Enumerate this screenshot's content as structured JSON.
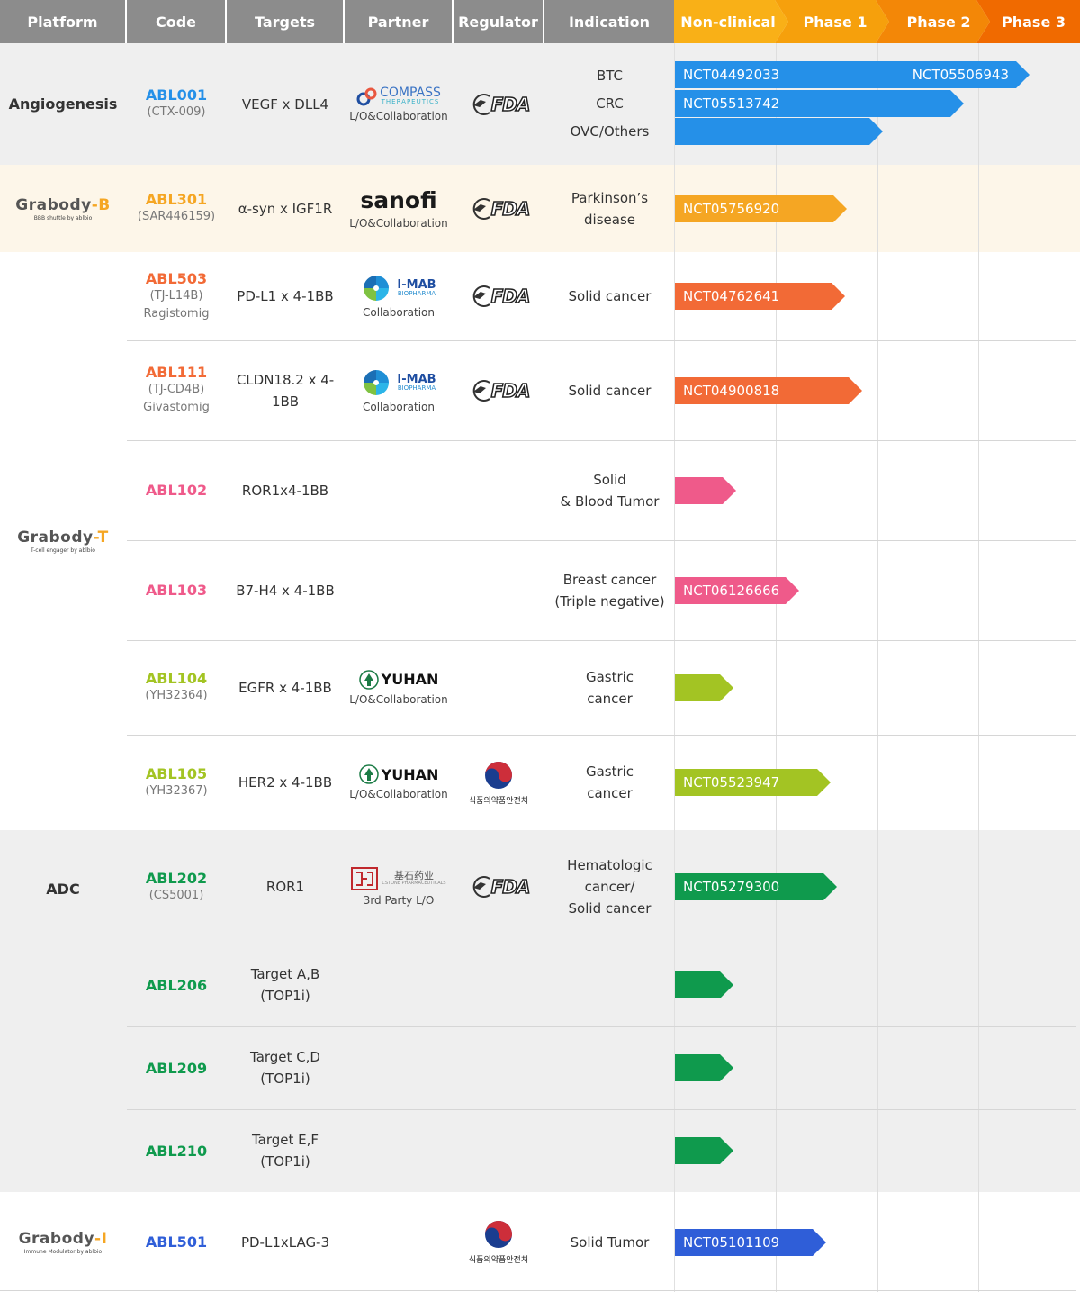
{
  "header": {
    "columns": [
      "Platform",
      "Code",
      "Targets",
      "Partner",
      "Regulator",
      "Indication"
    ],
    "phases": [
      "Non-clinical",
      "Phase 1",
      "Phase 2",
      "Phase 3"
    ],
    "phase_colors": [
      "#f9b017",
      "#f6a00c",
      "#f38707",
      "#f06a00"
    ]
  },
  "platforms": {
    "angiogenesis": "Angiogenesis",
    "grabody_b": {
      "main": "Grabody",
      "suffix": "-B",
      "tag": "BBB shuttle by ablbio"
    },
    "grabody_t": {
      "main": "Grabody",
      "suffix": "-T",
      "tag": "T-cell engager by ablbio"
    },
    "adc": "ADC",
    "grabody_i": {
      "main": "Grabody",
      "suffix": "-I",
      "tag": "Immune Modulator by ablbio"
    }
  },
  "logos": {
    "compass": {
      "name": "COMPASS",
      "sub": "THERAPEUTICS"
    },
    "sanofi": "sanofi",
    "imab": {
      "name": "I-MAB",
      "sub": "BIOPHARMA"
    },
    "yuhan": "YUHAN",
    "cstone": {
      "name": "基石药业",
      "sub": "CSTONE PHARMACEUTICALS"
    },
    "fda": "FDA",
    "mfds": "식품의약품안전처"
  },
  "rows": [
    {
      "code": "ABL001",
      "alias": "(CTX-009)",
      "alias2": "",
      "target": [
        "VEGF x DLL4"
      ],
      "partner": "compass",
      "partner_caption": "L/O&Collaboration",
      "regulator": "fda",
      "indication": [
        "BTC",
        "CRC",
        "OVC/Others"
      ],
      "color": "#2590e8"
    },
    {
      "code": "ABL301",
      "alias": "(SAR446159)",
      "alias2": "",
      "target": [
        "α-syn x IGF1R"
      ],
      "partner": "sanofi",
      "partner_caption": "L/O&Collaboration",
      "regulator": "fda",
      "indication": [
        "Parkinson’s",
        "disease"
      ],
      "color": "#f5a623"
    },
    {
      "code": "ABL503",
      "alias": "(TJ-L14B)",
      "alias2": "Ragistomig",
      "target": [
        "PD-L1 x 4-1BB"
      ],
      "partner": "imab",
      "partner_caption": "Collaboration",
      "regulator": "fda",
      "indication": [
        "Solid cancer"
      ],
      "color": "#f26a36"
    },
    {
      "code": "ABL111",
      "alias": "(TJ-CD4B)",
      "alias2": "Givastomig",
      "target": [
        "CLDN18.2 x 4-1BB"
      ],
      "partner": "imab",
      "partner_caption": "Collaboration",
      "regulator": "fda",
      "indication": [
        "Solid cancer"
      ],
      "color": "#f26a36"
    },
    {
      "code": "ABL102",
      "alias": "",
      "alias2": "",
      "target": [
        "ROR1x4-1BB"
      ],
      "partner": "",
      "partner_caption": "",
      "regulator": "",
      "indication": [
        "Solid",
        "& Blood Tumor"
      ],
      "color": "#ef5a8a"
    },
    {
      "code": "ABL103",
      "alias": "",
      "alias2": "",
      "target": [
        "B7-H4 x 4-1BB"
      ],
      "partner": "",
      "partner_caption": "",
      "regulator": "",
      "indication": [
        "Breast cancer",
        "(Triple negative)"
      ],
      "color": "#ef5a8a"
    },
    {
      "code": "ABL104",
      "alias": "(YH32364)",
      "alias2": "",
      "target": [
        "EGFR x 4-1BB"
      ],
      "partner": "yuhan",
      "partner_caption": "L/O&Collaboration",
      "regulator": "",
      "indication": [
        "Gastric",
        "cancer"
      ],
      "color": "#a3c423"
    },
    {
      "code": "ABL105",
      "alias": "(YH32367)",
      "alias2": "",
      "target": [
        "HER2 x 4-1BB"
      ],
      "partner": "yuhan",
      "partner_caption": "L/O&Collaboration",
      "regulator": "mfds",
      "indication": [
        "Gastric",
        "cancer"
      ],
      "color": "#a3c423"
    },
    {
      "code": "ABL202",
      "alias": "(CS5001)",
      "alias2": "",
      "target": [
        "ROR1"
      ],
      "partner": "cstone",
      "partner_caption": "3rd Party L/O",
      "regulator": "fda",
      "indication": [
        "Hematologic",
        "cancer/",
        "Solid cancer"
      ],
      "color": "#0f9a4d"
    },
    {
      "code": "ABL206",
      "alias": "",
      "alias2": "",
      "target": [
        "Target A,B",
        "(TOP1i)"
      ],
      "partner": "",
      "partner_caption": "",
      "regulator": "",
      "indication": [],
      "color": "#0f9a4d"
    },
    {
      "code": "ABL209",
      "alias": "",
      "alias2": "",
      "target": [
        "Target C,D",
        "(TOP1i)"
      ],
      "partner": "",
      "partner_caption": "",
      "regulator": "",
      "indication": [],
      "color": "#0f9a4d"
    },
    {
      "code": "ABL210",
      "alias": "",
      "alias2": "",
      "target": [
        "Target E,F",
        "(TOP1i)"
      ],
      "partner": "",
      "partner_caption": "",
      "regulator": "",
      "indication": [],
      "color": "#0f9a4d"
    },
    {
      "code": "ABL501",
      "alias": "",
      "alias2": "",
      "target": [
        "PD-L1xLAG-3"
      ],
      "partner": "",
      "partner_caption": "",
      "regulator": "mfds",
      "indication": [
        "Solid Tumor"
      ],
      "color": "#2f5ed8"
    }
  ],
  "progress": [
    {
      "row": 0,
      "label": "NCT04492033",
      "label2": "NCT05506943",
      "phase_end": 3.5
    },
    {
      "row": 0,
      "label": "NCT05513742",
      "label2": "",
      "phase_end": 2.85
    },
    {
      "row": 0,
      "label": "",
      "label2": "",
      "phase_end": 2.05
    },
    {
      "row": 1,
      "label": "NCT05756920",
      "label2": "",
      "phase_end": 1.7
    },
    {
      "row": 2,
      "label": "NCT04762641",
      "label2": "",
      "phase_end": 1.68
    },
    {
      "row": 3,
      "label": "NCT04900818",
      "label2": "",
      "phase_end": 1.85
    },
    {
      "row": 4,
      "label": "",
      "label2": "",
      "phase_end": 0.6
    },
    {
      "row": 5,
      "label": "NCT06126666",
      "label2": "",
      "phase_end": 1.23
    },
    {
      "row": 6,
      "label": "",
      "label2": "",
      "phase_end": 0.58
    },
    {
      "row": 7,
      "label": "NCT05523947",
      "label2": "",
      "phase_end": 1.54
    },
    {
      "row": 8,
      "label": "NCT05279300",
      "label2": "",
      "phase_end": 1.6
    },
    {
      "row": 9,
      "label": "",
      "label2": "",
      "phase_end": 0.58
    },
    {
      "row": 10,
      "label": "",
      "label2": "",
      "phase_end": 0.58
    },
    {
      "row": 11,
      "label": "",
      "label2": "",
      "phase_end": 0.58
    },
    {
      "row": 12,
      "label": "NCT05101109",
      "label2": "",
      "phase_end": 1.49
    }
  ]
}
